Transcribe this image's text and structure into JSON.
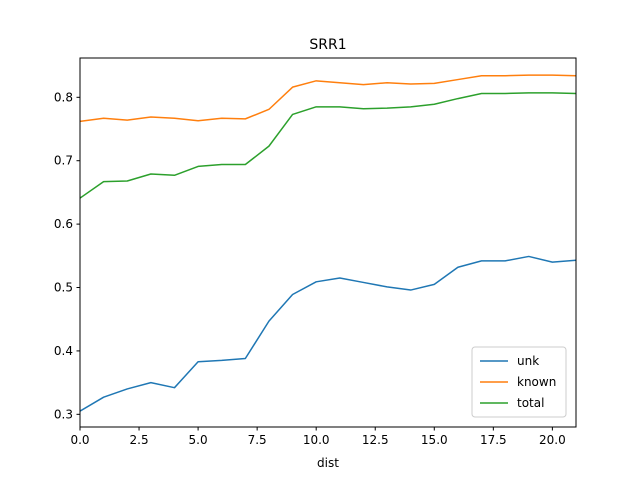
{
  "chart_data": {
    "type": "line",
    "title": "SRR1",
    "xlabel": "dist",
    "ylabel": "",
    "xlim": [
      0,
      21
    ],
    "ylim": [
      0.28,
      0.862
    ],
    "x_ticks": [
      0,
      2.5,
      5,
      7.5,
      10,
      12.5,
      15,
      17.5,
      20
    ],
    "x_tick_labels": [
      "0.0",
      "2.5",
      "5.0",
      "7.5",
      "10.0",
      "12.5",
      "15.0",
      "17.5",
      "20.0"
    ],
    "y_ticks": [
      0.3,
      0.4,
      0.5,
      0.6,
      0.7,
      0.8
    ],
    "y_tick_labels": [
      "0.3",
      "0.4",
      "0.5",
      "0.6",
      "0.7",
      "0.8"
    ],
    "legend_position": "lower-right",
    "x": [
      0,
      1,
      2,
      3,
      4,
      5,
      6,
      7,
      8,
      9,
      10,
      11,
      12,
      13,
      14,
      15,
      16,
      17,
      18,
      19,
      20,
      21
    ],
    "series": [
      {
        "name": "unk",
        "color": "#1f77b4",
        "values": [
          0.305,
          0.327,
          0.34,
          0.35,
          0.342,
          0.383,
          0.385,
          0.388,
          0.447,
          0.489,
          0.509,
          0.515,
          0.508,
          0.501,
          0.496,
          0.505,
          0.532,
          0.542,
          0.542,
          0.549,
          0.54,
          0.543
        ]
      },
      {
        "name": "known",
        "color": "#ff7f0e",
        "values": [
          0.762,
          0.767,
          0.764,
          0.769,
          0.767,
          0.763,
          0.767,
          0.766,
          0.781,
          0.816,
          0.826,
          0.823,
          0.82,
          0.823,
          0.821,
          0.822,
          0.828,
          0.834,
          0.834,
          0.835,
          0.835,
          0.834
        ]
      },
      {
        "name": "total",
        "color": "#2ca02c",
        "values": [
          0.641,
          0.667,
          0.668,
          0.679,
          0.677,
          0.691,
          0.694,
          0.694,
          0.723,
          0.773,
          0.785,
          0.785,
          0.782,
          0.783,
          0.785,
          0.789,
          0.798,
          0.806,
          0.806,
          0.807,
          0.807,
          0.806
        ]
      }
    ]
  }
}
